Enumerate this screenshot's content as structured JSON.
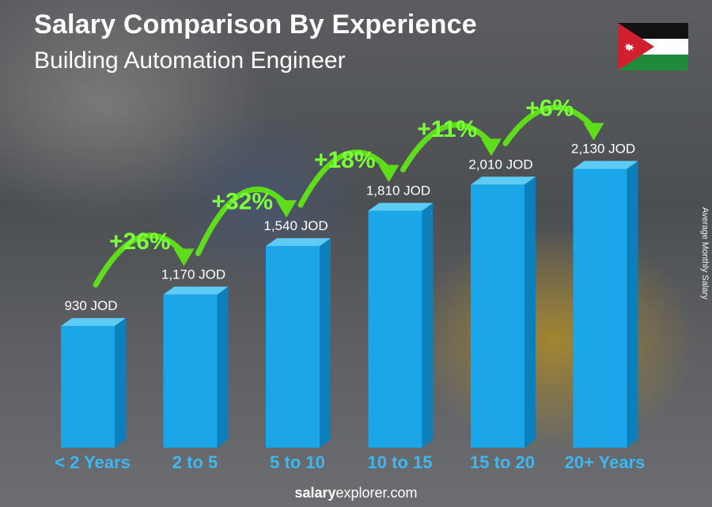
{
  "header": {
    "title": "Salary Comparison By Experience",
    "subtitle": "Building Automation Engineer"
  },
  "side_label": "Average Monthly Salary",
  "footer": {
    "brand_bold": "salary",
    "brand_rest": "explorer.com"
  },
  "flag": {
    "country": "Jordan",
    "icon": "jordan-flag-icon"
  },
  "colors": {
    "bar_front": "#1aa6e8",
    "bar_side": "#0d7fba",
    "bar_top": "#5ecbf5",
    "category_text": "#3db8f0",
    "increase_text": "#7bff3a",
    "arrow": "#5fdc1a"
  },
  "chart_data": {
    "type": "bar",
    "categories": [
      "< 2 Years",
      "2 to 5",
      "5 to 10",
      "10 to 15",
      "15 to 20",
      "20+ Years"
    ],
    "values": [
      930,
      1170,
      1540,
      1810,
      2010,
      2130
    ],
    "value_labels": [
      "930 JOD",
      "1,170 JOD",
      "1,540 JOD",
      "1,810 JOD",
      "2,010 JOD",
      "2,130 JOD"
    ],
    "increases": [
      "+26%",
      "+32%",
      "+18%",
      "+11%",
      "+6%"
    ],
    "unit": "JOD",
    "ylabel": "Average Monthly Salary",
    "title": "Salary Comparison By Experience",
    "subtitle": "Building Automation Engineer"
  }
}
